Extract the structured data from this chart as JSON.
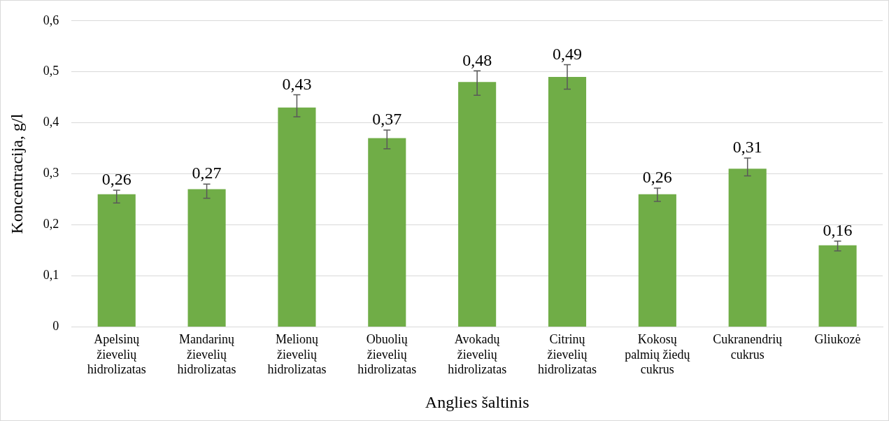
{
  "chart_data": {
    "type": "bar",
    "xlabel": "Anglies šaltinis",
    "ylabel": "Koncentracija, g/l",
    "categories": [
      "Apelsinų žievelių hidrolizatas",
      "Mandarinų žievelių hidrolizatas",
      "Melionų žievelių hidrolizatas",
      "Obuolių žievelių hidrolizatas",
      "Avokadų žievelių hidrolizatas",
      "Citrinų žievelių hidrolizatas",
      "Kokosų palmių žiedų cukrus",
      "Cukranendrių cukrus",
      "Gliukozė"
    ],
    "values": [
      0.26,
      0.27,
      0.43,
      0.37,
      0.48,
      0.49,
      0.26,
      0.31,
      0.16
    ],
    "value_labels": [
      "0,26",
      "0,27",
      "0,43",
      "0,37",
      "0,48",
      "0,49",
      "0,26",
      "0,31",
      "0,16"
    ],
    "errors": [
      [
        0.243,
        0.268
      ],
      [
        0.252,
        0.28
      ],
      [
        0.412,
        0.455
      ],
      [
        0.349,
        0.386
      ],
      [
        0.454,
        0.502
      ],
      [
        0.466,
        0.514
      ],
      [
        0.246,
        0.272
      ],
      [
        0.296,
        0.331
      ],
      [
        0.149,
        0.168
      ]
    ],
    "color": "#70ad47",
    "ylim": [
      0,
      0.6
    ],
    "yticks": [
      {
        "value": 0,
        "label": "0"
      },
      {
        "value": 0.1,
        "label": "0,1"
      },
      {
        "value": 0.2,
        "label": "0,2"
      },
      {
        "value": 0.3,
        "label": "0,3"
      },
      {
        "value": 0.4,
        "label": "0,4"
      },
      {
        "value": 0.5,
        "label": "0,5"
      },
      {
        "value": 0.6,
        "label": "0,6"
      }
    ],
    "grid": "y",
    "legend": false
  }
}
